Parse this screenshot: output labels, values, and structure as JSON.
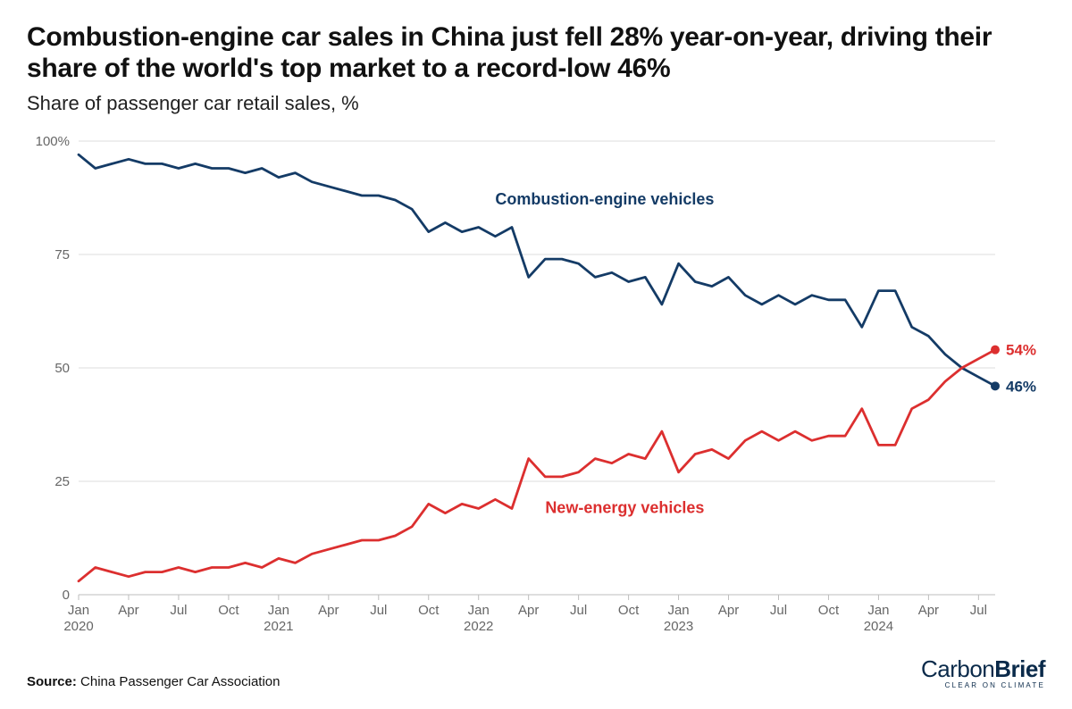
{
  "title": "Combustion-engine car sales in China just fell 28% year-on-year, driving their share of the world's top market to a record-low 46%",
  "subtitle": "Share of passenger car retail sales, %",
  "source_prefix": "Source:",
  "source_text": "China Passenger Car Association",
  "logo": {
    "line1a": "Carbon",
    "line1b": "Brief",
    "line2": "CLEAR ON CLIMATE",
    "color": "#0a2a4a"
  },
  "chart": {
    "type": "line",
    "background_color": "#ffffff",
    "grid_color": "#dcdcdc",
    "axis_text_color": "#666666",
    "ylim": [
      0,
      100
    ],
    "yticks": [
      0,
      25,
      50,
      75,
      100
    ],
    "ytick_labels": [
      "0",
      "25",
      "50",
      "75",
      "100%"
    ],
    "x_start_month": "2020-01",
    "x_end_month": "2024-08",
    "xticks": [
      {
        "month": "2020-01",
        "top": "Jan",
        "bottom": "2020"
      },
      {
        "month": "2020-04",
        "top": "Apr"
      },
      {
        "month": "2020-07",
        "top": "Jul"
      },
      {
        "month": "2020-10",
        "top": "Oct"
      },
      {
        "month": "2021-01",
        "top": "Jan",
        "bottom": "2021"
      },
      {
        "month": "2021-04",
        "top": "Apr"
      },
      {
        "month": "2021-07",
        "top": "Jul"
      },
      {
        "month": "2021-10",
        "top": "Oct"
      },
      {
        "month": "2022-01",
        "top": "Jan",
        "bottom": "2022"
      },
      {
        "month": "2022-04",
        "top": "Apr"
      },
      {
        "month": "2022-07",
        "top": "Jul"
      },
      {
        "month": "2022-10",
        "top": "Oct"
      },
      {
        "month": "2023-01",
        "top": "Jan",
        "bottom": "2023"
      },
      {
        "month": "2023-04",
        "top": "Apr"
      },
      {
        "month": "2023-07",
        "top": "Jul"
      },
      {
        "month": "2023-10",
        "top": "Oct"
      },
      {
        "month": "2024-01",
        "top": "Jan",
        "bottom": "2024"
      },
      {
        "month": "2024-04",
        "top": "Apr"
      },
      {
        "month": "2024-07",
        "top": "Jul"
      }
    ],
    "line_width": 2.8,
    "end_point_radius": 5,
    "series": [
      {
        "id": "ice",
        "label": "Combustion-engine vehicles",
        "color": "#143b66",
        "label_x_month": "2022-02",
        "label_y": 86,
        "end_label": "46%",
        "end_value": 46,
        "values": [
          97,
          94,
          95,
          96,
          95,
          95,
          94,
          95,
          94,
          94,
          93,
          94,
          92,
          93,
          91,
          90,
          89,
          88,
          88,
          87,
          85,
          80,
          82,
          80,
          81,
          79,
          81,
          70,
          74,
          74,
          73,
          70,
          71,
          69,
          70,
          64,
          73,
          69,
          68,
          70,
          66,
          64,
          66,
          64,
          66,
          65,
          65,
          59,
          67,
          67,
          59,
          57,
          53,
          50,
          48,
          46
        ]
      },
      {
        "id": "nev",
        "label": "New-energy vehicles",
        "color": "#dc2f2f",
        "label_x_month": "2022-05",
        "label_y": 18,
        "end_label": "54%",
        "end_value": 54,
        "values": [
          3,
          6,
          5,
          4,
          5,
          5,
          6,
          5,
          6,
          6,
          7,
          6,
          8,
          7,
          9,
          10,
          11,
          12,
          12,
          13,
          15,
          20,
          18,
          20,
          19,
          21,
          19,
          30,
          26,
          26,
          27,
          30,
          29,
          31,
          30,
          36,
          27,
          31,
          32,
          30,
          34,
          36,
          34,
          36,
          34,
          35,
          35,
          41,
          33,
          33,
          41,
          43,
          47,
          50,
          52,
          54
        ]
      }
    ]
  }
}
